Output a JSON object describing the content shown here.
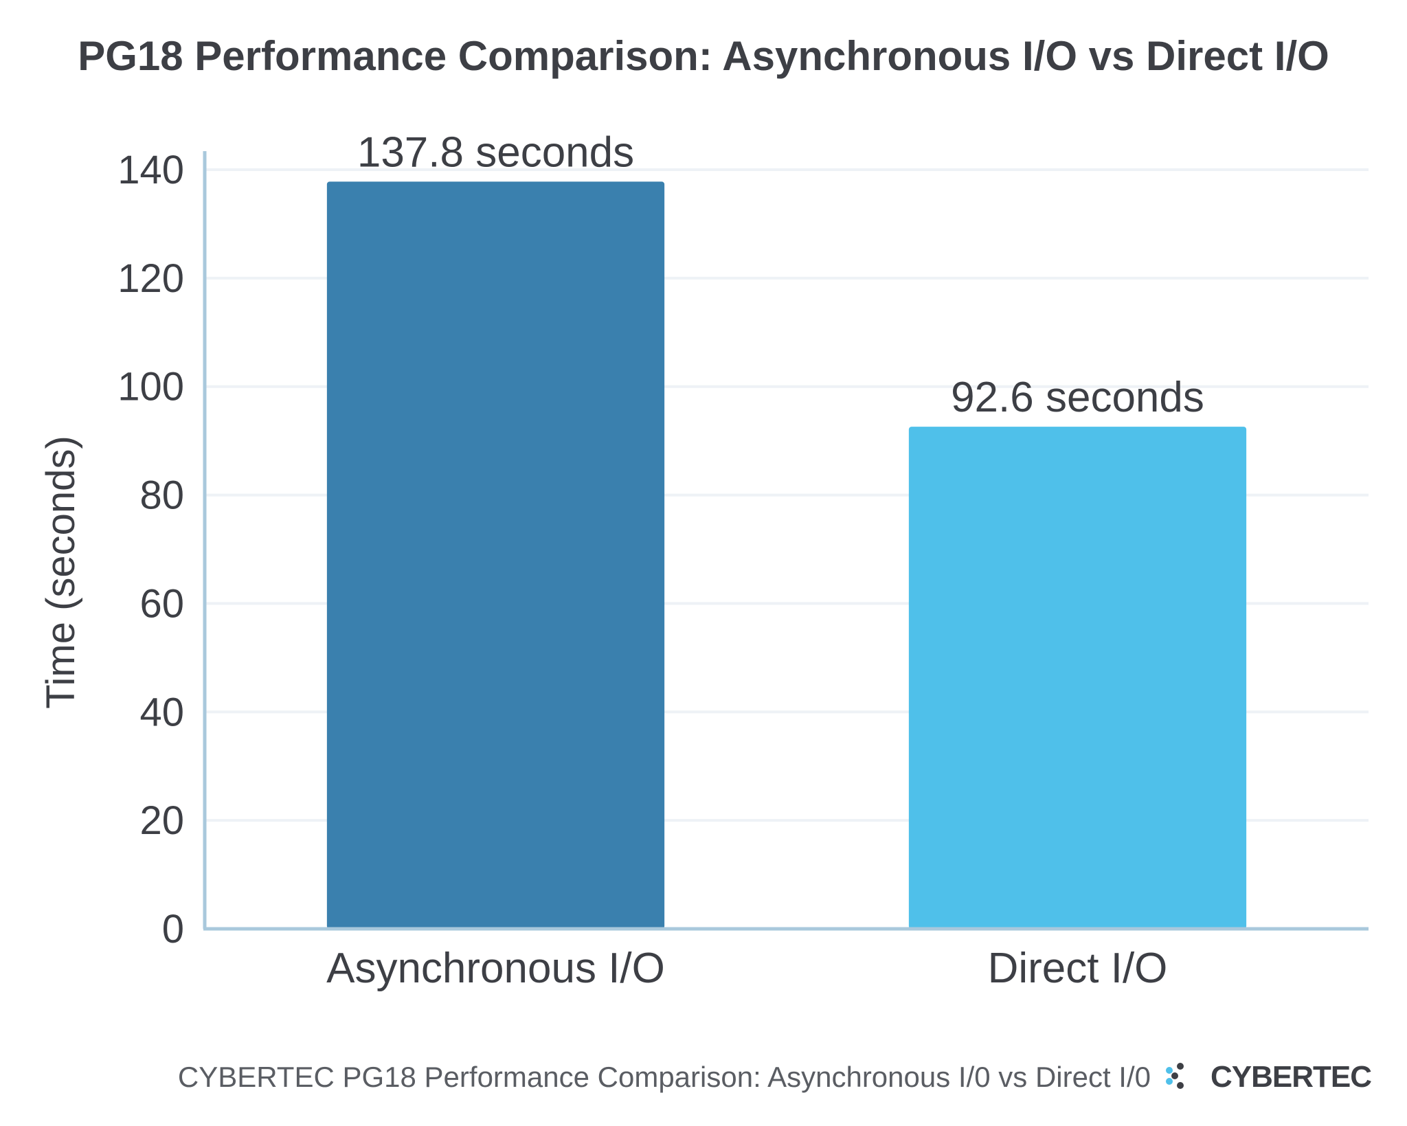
{
  "chart_data": {
    "type": "bar",
    "title": "PG18 Performance Comparison: Asynchronous I/O vs Direct I/O",
    "xlabel": "",
    "ylabel": "Time (seconds)",
    "categories": [
      "Asynchronous I/O",
      "Direct I/O"
    ],
    "values": [
      137.8,
      92.6
    ],
    "data_labels": [
      "137.8 seconds",
      "92.6 seconds"
    ],
    "bar_colors": [
      "#3a80ae",
      "#4fc0ea"
    ],
    "ylim": [
      0,
      140
    ],
    "yticks": [
      0,
      20,
      40,
      60,
      80,
      100,
      120,
      140
    ],
    "ytick_labels": [
      "0",
      "20",
      "40",
      "60",
      "80",
      "100",
      "120",
      "140"
    ],
    "grid": true,
    "legend": "none"
  },
  "footer": {
    "caption": "CYBERTEC PG18 Performance Comparison: Asynchronous I/0 vs Direct I/0",
    "brand": "CYBERTEC",
    "brand_icon": "cybertec-logo-icon",
    "brand_icon_color": "#4fc0ea"
  }
}
